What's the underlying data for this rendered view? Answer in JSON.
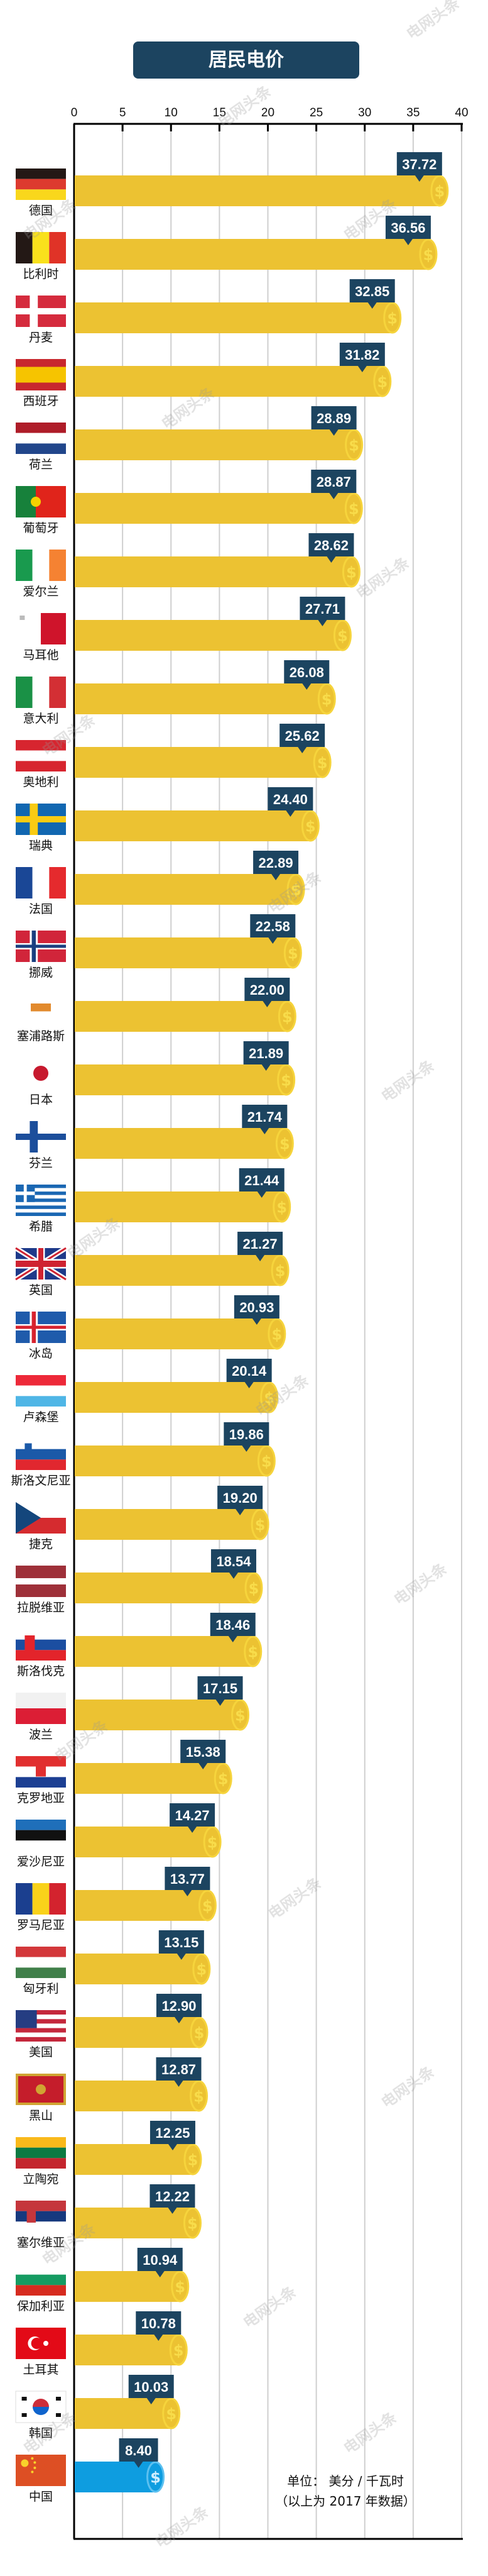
{
  "watermark": "电网头条",
  "chart_data": {
    "type": "bar",
    "orientation": "horizontal",
    "title": "居民电价",
    "xlim": [
      0,
      40
    ],
    "xticks": [
      0,
      5,
      10,
      15,
      20,
      25,
      30,
      35,
      40
    ],
    "grid": true,
    "unit_label": "单位： 美分 / 千瓦时",
    "note": "（以上为 2017 年数据）",
    "colors": {
      "bar": "#ecc232",
      "highlight": "#0e9de0",
      "label_bg": "#1c4460",
      "coin": "#f6d43c",
      "coin_highlight": "#5cc0f0"
    },
    "categories": [
      "德国",
      "比利时",
      "丹麦",
      "西班牙",
      "荷兰",
      "葡萄牙",
      "爱尔兰",
      "马耳他",
      "意大利",
      "奥地利",
      "瑞典",
      "法国",
      "挪威",
      "塞浦路斯",
      "日本",
      "芬兰",
      "希腊",
      "英国",
      "冰岛",
      "卢森堡",
      "斯洛文尼亚",
      "捷克",
      "拉脱维亚",
      "斯洛伐克",
      "波兰",
      "克罗地亚",
      "爱沙尼亚",
      "罗马尼亚",
      "匈牙利",
      "美国",
      "黑山",
      "立陶宛",
      "塞尔维亚",
      "保加利亚",
      "土耳其",
      "韩国",
      "中国"
    ],
    "values": [
      37.72,
      36.56,
      32.85,
      31.82,
      28.89,
      28.87,
      28.62,
      27.71,
      26.08,
      25.62,
      24.4,
      22.89,
      22.58,
      22.0,
      21.89,
      21.74,
      21.44,
      21.27,
      20.93,
      20.14,
      19.86,
      19.2,
      18.54,
      18.46,
      17.15,
      15.38,
      14.27,
      13.77,
      13.15,
      12.9,
      12.87,
      12.25,
      12.22,
      10.94,
      10.78,
      10.03,
      8.4
    ],
    "value_labels": [
      "37.72",
      "36.56",
      "32.85",
      "31.82",
      "28.89",
      "28.87",
      "28.62",
      "27.71",
      "26.08",
      "25.62",
      "24.40",
      "22.89",
      "22.58",
      "22.00",
      "21.89",
      "21.74",
      "21.44",
      "21.27",
      "20.93",
      "20.14",
      "19.86",
      "19.20",
      "18.54",
      "18.46",
      "17.15",
      "15.38",
      "14.27",
      "13.77",
      "13.15",
      "12.90",
      "12.87",
      "12.25",
      "12.22",
      "10.94",
      "10.78",
      "10.03",
      "8.40"
    ],
    "highlight_category": "中国",
    "flag_icons": [
      "germany-flag",
      "belgium-flag",
      "denmark-flag",
      "spain-flag",
      "netherlands-flag",
      "portugal-flag",
      "ireland-flag",
      "malta-flag",
      "italy-flag",
      "austria-flag",
      "sweden-flag",
      "france-flag",
      "norway-flag",
      "cyprus-flag",
      "japan-flag",
      "finland-flag",
      "greece-flag",
      "uk-flag",
      "iceland-flag",
      "luxembourg-flag",
      "slovenia-flag",
      "czech-flag",
      "latvia-flag",
      "slovakia-flag",
      "poland-flag",
      "croatia-flag",
      "estonia-flag",
      "romania-flag",
      "hungary-flag",
      "usa-flag",
      "montenegro-flag",
      "lithuania-flag",
      "serbia-flag",
      "bulgaria-flag",
      "turkey-flag",
      "korea-flag",
      "china-flag"
    ]
  }
}
